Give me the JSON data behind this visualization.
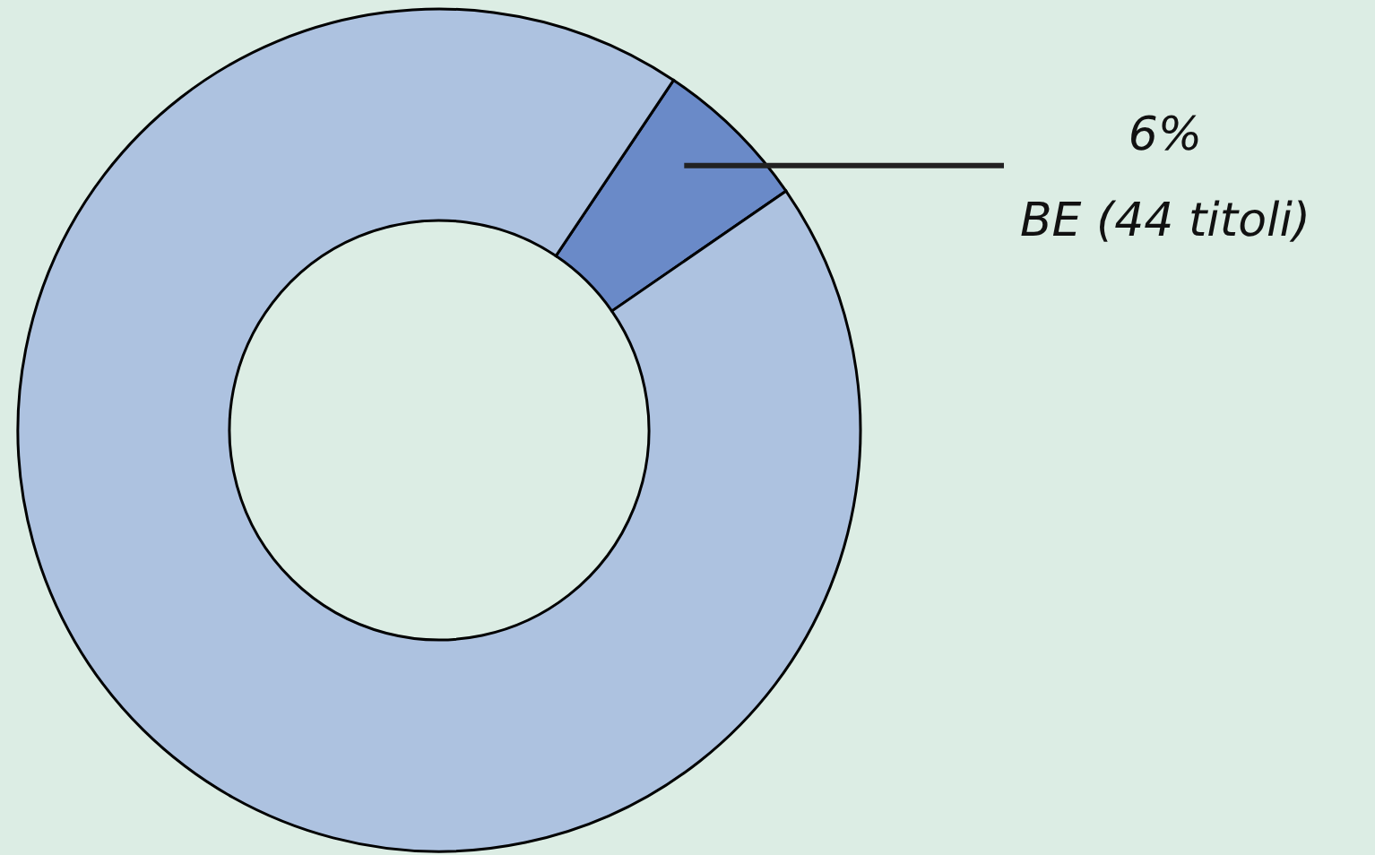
{
  "chart_data": {
    "type": "donut",
    "categories": [
      "BE (44 titoli)",
      null
    ],
    "values": [
      6,
      94
    ],
    "colors": [
      "#6a8ac8",
      "#adc2e0"
    ],
    "value_labels": [
      "6%",
      null
    ]
  }
}
